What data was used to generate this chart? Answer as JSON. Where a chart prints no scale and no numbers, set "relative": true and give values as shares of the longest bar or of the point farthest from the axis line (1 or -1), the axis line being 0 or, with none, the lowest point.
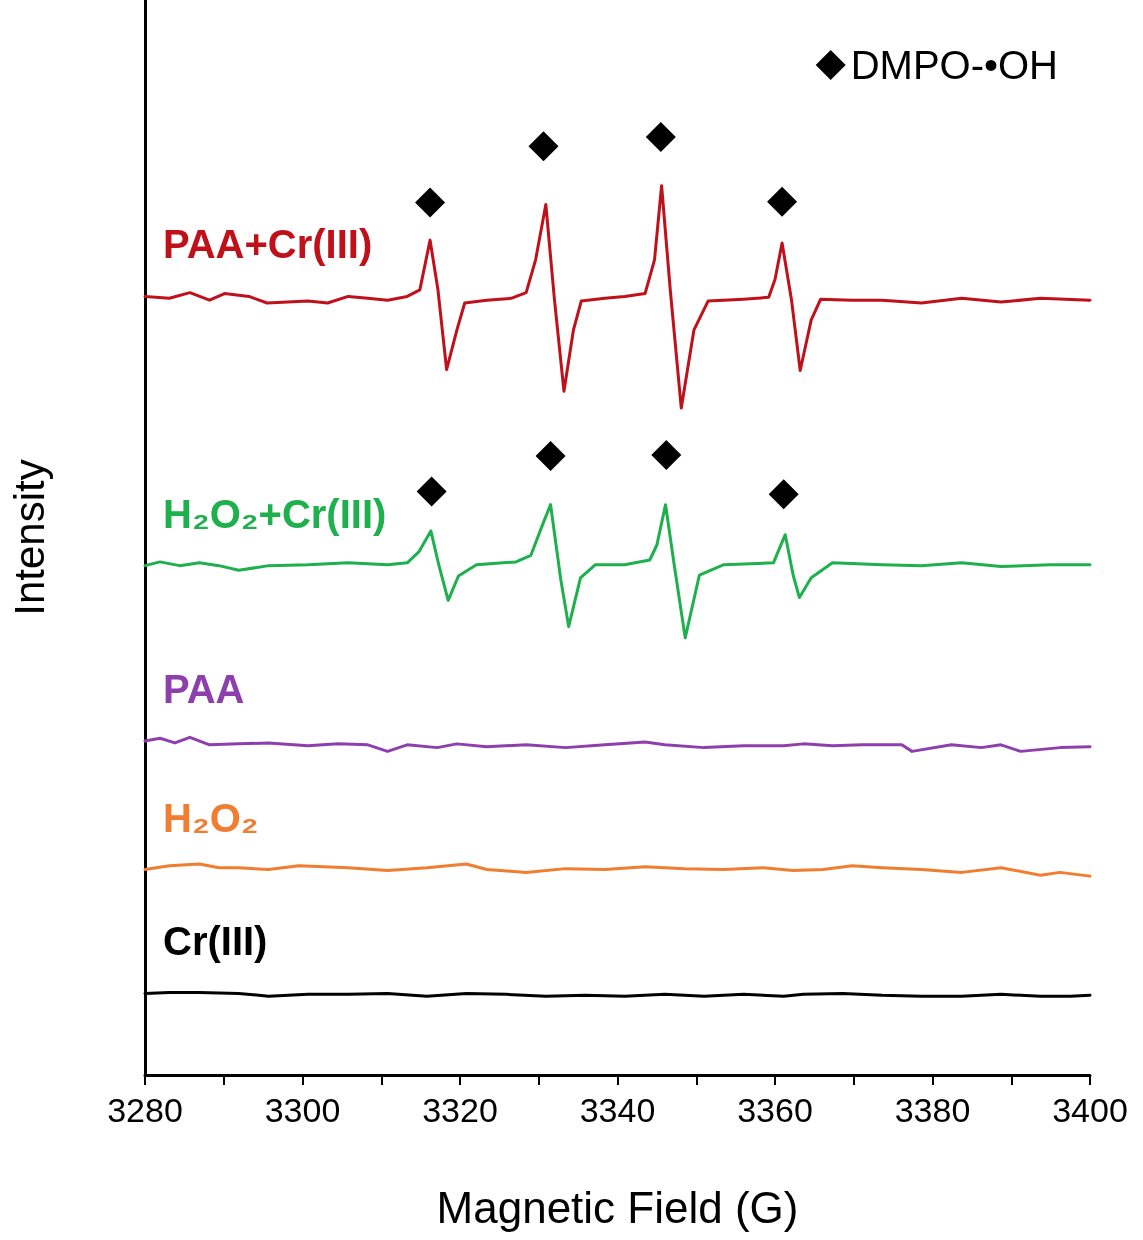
{
  "chart_data": {
    "type": "line",
    "relative": true,
    "xlabel": "Magnetic Field (G)",
    "ylabel": "Intensity",
    "xlim": [
      3280,
      3400
    ],
    "xticks": [
      3280,
      {
        "value": 3290,
        "label": null
      },
      3300,
      {
        "value": 3310,
        "label": null
      },
      3320,
      {
        "value": 3330,
        "label": null
      },
      3340,
      {
        "value": 3350,
        "label": null
      },
      3360,
      {
        "value": 3370,
        "label": null
      },
      3380,
      {
        "value": 3390,
        "label": null
      },
      3400
    ],
    "grid": false,
    "legend": "top right",
    "marker": "none",
    "line_style": "solid",
    "series": [
      {
        "name": "PAA+Cr(III)",
        "color": "#c0101a",
        "x": [
          3280.0,
          3283.1,
          3285.7,
          3288.2,
          3290.1,
          3293.2,
          3295.5,
          3300.7,
          3303.2,
          3305.8,
          3308.3,
          3310.8,
          3313.3,
          3314.9,
          3316.2,
          3317.2,
          3318.3,
          3319.6,
          3320.6,
          3323.4,
          3326.5,
          3328.4,
          3329.6,
          3330.9,
          3332.0,
          3333.2,
          3334.4,
          3335.4,
          3338.4,
          3340.9,
          3343.5,
          3344.7,
          3345.6,
          3346.7,
          3348.1,
          3349.7,
          3351.5,
          3356.0,
          3359.2,
          3360.0,
          3360.9,
          3362.1,
          3363.2,
          3364.6,
          3365.8,
          3369.8,
          3373.6,
          3378.6,
          3383.7,
          3388.7,
          3393.7,
          3400.0
        ],
        "values": [
          0.83,
          0.828,
          0.834,
          0.826,
          0.833,
          0.83,
          0.823,
          0.825,
          0.823,
          0.83,
          0.828,
          0.826,
          0.83,
          0.837,
          0.89,
          0.837,
          0.752,
          0.794,
          0.823,
          0.826,
          0.828,
          0.834,
          0.869,
          0.928,
          0.826,
          0.729,
          0.794,
          0.825,
          0.828,
          0.83,
          0.833,
          0.869,
          0.948,
          0.837,
          0.711,
          0.794,
          0.825,
          0.827,
          0.829,
          0.848,
          0.887,
          0.826,
          0.751,
          0.805,
          0.827,
          0.826,
          0.826,
          0.823,
          0.828,
          0.824,
          0.828,
          0.826
        ]
      },
      {
        "name": "H₂O₂+Cr(III)",
        "color": "#1fb04e",
        "x": [
          3280.0,
          3281.9,
          3284.4,
          3286.9,
          3289.4,
          3291.9,
          3295.7,
          3300.7,
          3305.8,
          3310.8,
          3313.3,
          3314.8,
          3316.3,
          3317.3,
          3318.5,
          3319.8,
          3322.1,
          3327.1,
          3329.0,
          3330.5,
          3331.5,
          3332.8,
          3333.8,
          3335.3,
          3337.2,
          3340.9,
          3344.1,
          3345.0,
          3346.1,
          3347.2,
          3348.6,
          3350.4,
          3353.5,
          3359.8,
          3360.5,
          3361.3,
          3362.3,
          3363.1,
          3364.6,
          3367.3,
          3373.6,
          3378.6,
          3383.7,
          3388.7,
          3395.0,
          3400.0
        ],
        "values": [
          0.543,
          0.547,
          0.543,
          0.546,
          0.543,
          0.538,
          0.543,
          0.544,
          0.546,
          0.544,
          0.546,
          0.558,
          0.58,
          0.544,
          0.506,
          0.532,
          0.544,
          0.547,
          0.554,
          0.587,
          0.608,
          0.528,
          0.478,
          0.53,
          0.544,
          0.544,
          0.549,
          0.565,
          0.608,
          0.544,
          0.466,
          0.533,
          0.544,
          0.546,
          0.56,
          0.576,
          0.533,
          0.509,
          0.53,
          0.546,
          0.544,
          0.543,
          0.546,
          0.542,
          0.544,
          0.544
        ]
      },
      {
        "name": "PAA",
        "color": "#8e3fae",
        "x": [
          3280.0,
          3281.9,
          3283.8,
          3285.7,
          3288.2,
          3291.9,
          3295.7,
          3300.7,
          3304.5,
          3308.3,
          3310.8,
          3313.3,
          3317.1,
          3319.6,
          3323.4,
          3328.4,
          3333.4,
          3338.4,
          3343.5,
          3346.0,
          3351.0,
          3356.0,
          3361.1,
          3363.6,
          3367.3,
          3371.1,
          3376.1,
          3377.4,
          3382.4,
          3386.2,
          3388.7,
          3391.2,
          3396.2,
          3400.0
        ],
        "values": [
          0.356,
          0.359,
          0.354,
          0.36,
          0.352,
          0.353,
          0.354,
          0.351,
          0.353,
          0.352,
          0.345,
          0.352,
          0.349,
          0.353,
          0.35,
          0.352,
          0.349,
          0.352,
          0.355,
          0.352,
          0.349,
          0.351,
          0.351,
          0.353,
          0.351,
          0.352,
          0.352,
          0.345,
          0.352,
          0.349,
          0.352,
          0.345,
          0.349,
          0.35
        ]
      },
      {
        "name": "H₂O₂",
        "color": "#f07d30",
        "x": [
          3280.0,
          3283.1,
          3286.9,
          3289.4,
          3291.9,
          3295.7,
          3299.5,
          3305.8,
          3310.8,
          3315.8,
          3320.8,
          3323.4,
          3328.4,
          3333.4,
          3338.4,
          3343.5,
          3348.5,
          3353.5,
          3358.5,
          3362.3,
          3366.1,
          3369.8,
          3373.6,
          3378.6,
          3383.7,
          3388.7,
          3393.7,
          3396.2,
          3400.0
        ],
        "values": [
          0.219,
          0.223,
          0.225,
          0.221,
          0.221,
          0.219,
          0.223,
          0.221,
          0.218,
          0.221,
          0.225,
          0.219,
          0.216,
          0.22,
          0.219,
          0.222,
          0.22,
          0.219,
          0.221,
          0.218,
          0.219,
          0.223,
          0.221,
          0.219,
          0.216,
          0.221,
          0.213,
          0.216,
          0.212
        ]
      },
      {
        "name": "Cr(III)",
        "color": "#000000",
        "x": [
          3280.0,
          3283.1,
          3286.9,
          3291.9,
          3295.7,
          3300.7,
          3305.8,
          3310.8,
          3315.8,
          3320.8,
          3325.9,
          3330.9,
          3335.9,
          3340.9,
          3346.0,
          3351.0,
          3356.0,
          3361.1,
          3363.6,
          3368.6,
          3373.6,
          3378.6,
          3383.7,
          3388.7,
          3393.7,
          3397.5,
          3400.0
        ],
        "values": [
          0.087,
          0.088,
          0.088,
          0.087,
          0.084,
          0.086,
          0.086,
          0.087,
          0.084,
          0.087,
          0.086,
          0.084,
          0.085,
          0.084,
          0.086,
          0.084,
          0.086,
          0.084,
          0.086,
          0.087,
          0.085,
          0.084,
          0.084,
          0.086,
          0.084,
          0.084,
          0.085
        ]
      },
      {
        "name": "DMPO-•OH",
        "type": "scatter",
        "marker": "diamond",
        "color": "#000000",
        "x": [
          3316.2,
          3330.6,
          3345.5,
          3360.9,
          3316.4,
          3331.5,
          3346.2,
          3361.1
        ],
        "values": [
          0.93,
          0.99,
          1.0,
          0.931,
          0.622,
          0.66,
          0.661,
          0.619
        ]
      }
    ]
  }
}
